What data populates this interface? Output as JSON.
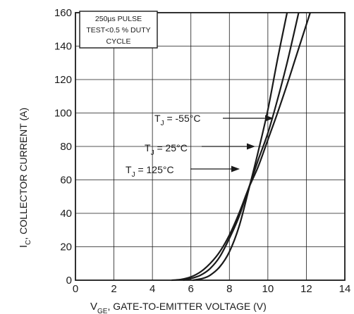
{
  "chart_data": {
    "type": "line",
    "xlabel_main": "V",
    "xlabel_sub": "GE",
    "xlabel_rest": ", GATE-TO-EMITTER  VOLTAGE (V)",
    "ylabel_main": "I",
    "ylabel_sub": "C",
    "ylabel_rest": ", COLLECTOR  CURRENT (A)",
    "xlim": [
      0,
      14
    ],
    "ylim": [
      0,
      160
    ],
    "x_ticks": [
      0,
      2,
      4,
      6,
      8,
      10,
      12,
      14
    ],
    "y_ticks": [
      0,
      20,
      40,
      60,
      80,
      100,
      120,
      140,
      160
    ],
    "grid": true,
    "note_lines": [
      "250µs PULSE",
      "TEST<0.5 % DUTY",
      "CYCLE"
    ],
    "series": [
      {
        "label_main": "T",
        "label_sub": "J",
        "label_rest": " = -55°C",
        "x": [
          6.1,
          6.6,
          7.0,
          7.5,
          8.0,
          8.5,
          9.0,
          9.5,
          10.0,
          10.5,
          11.0
        ],
        "y": [
          0,
          1,
          3,
          8,
          17,
          32,
          54,
          77,
          102,
          132,
          160
        ]
      },
      {
        "label_main": "T",
        "label_sub": "J",
        "label_rest": " = 25°C",
        "x": [
          5.6,
          6.0,
          6.5,
          7.0,
          7.5,
          8.0,
          8.5,
          9.0,
          9.5,
          10.0,
          10.5,
          11.0,
          11.6
        ],
        "y": [
          0,
          1,
          3,
          7,
          14,
          25,
          38,
          55,
          72,
          88,
          108,
          130,
          160
        ]
      },
      {
        "label_main": "T",
        "label_sub": "J",
        "label_rest": " = 125°C",
        "x": [
          5.0,
          5.5,
          6.0,
          6.5,
          7.0,
          7.5,
          8.0,
          8.5,
          9.0,
          9.5,
          10.0,
          10.5,
          11.0,
          11.5,
          12.2
        ],
        "y": [
          0,
          0.5,
          2,
          5,
          10,
          17,
          27,
          40,
          55,
          68,
          84,
          100,
          117,
          135,
          160
        ]
      }
    ]
  }
}
